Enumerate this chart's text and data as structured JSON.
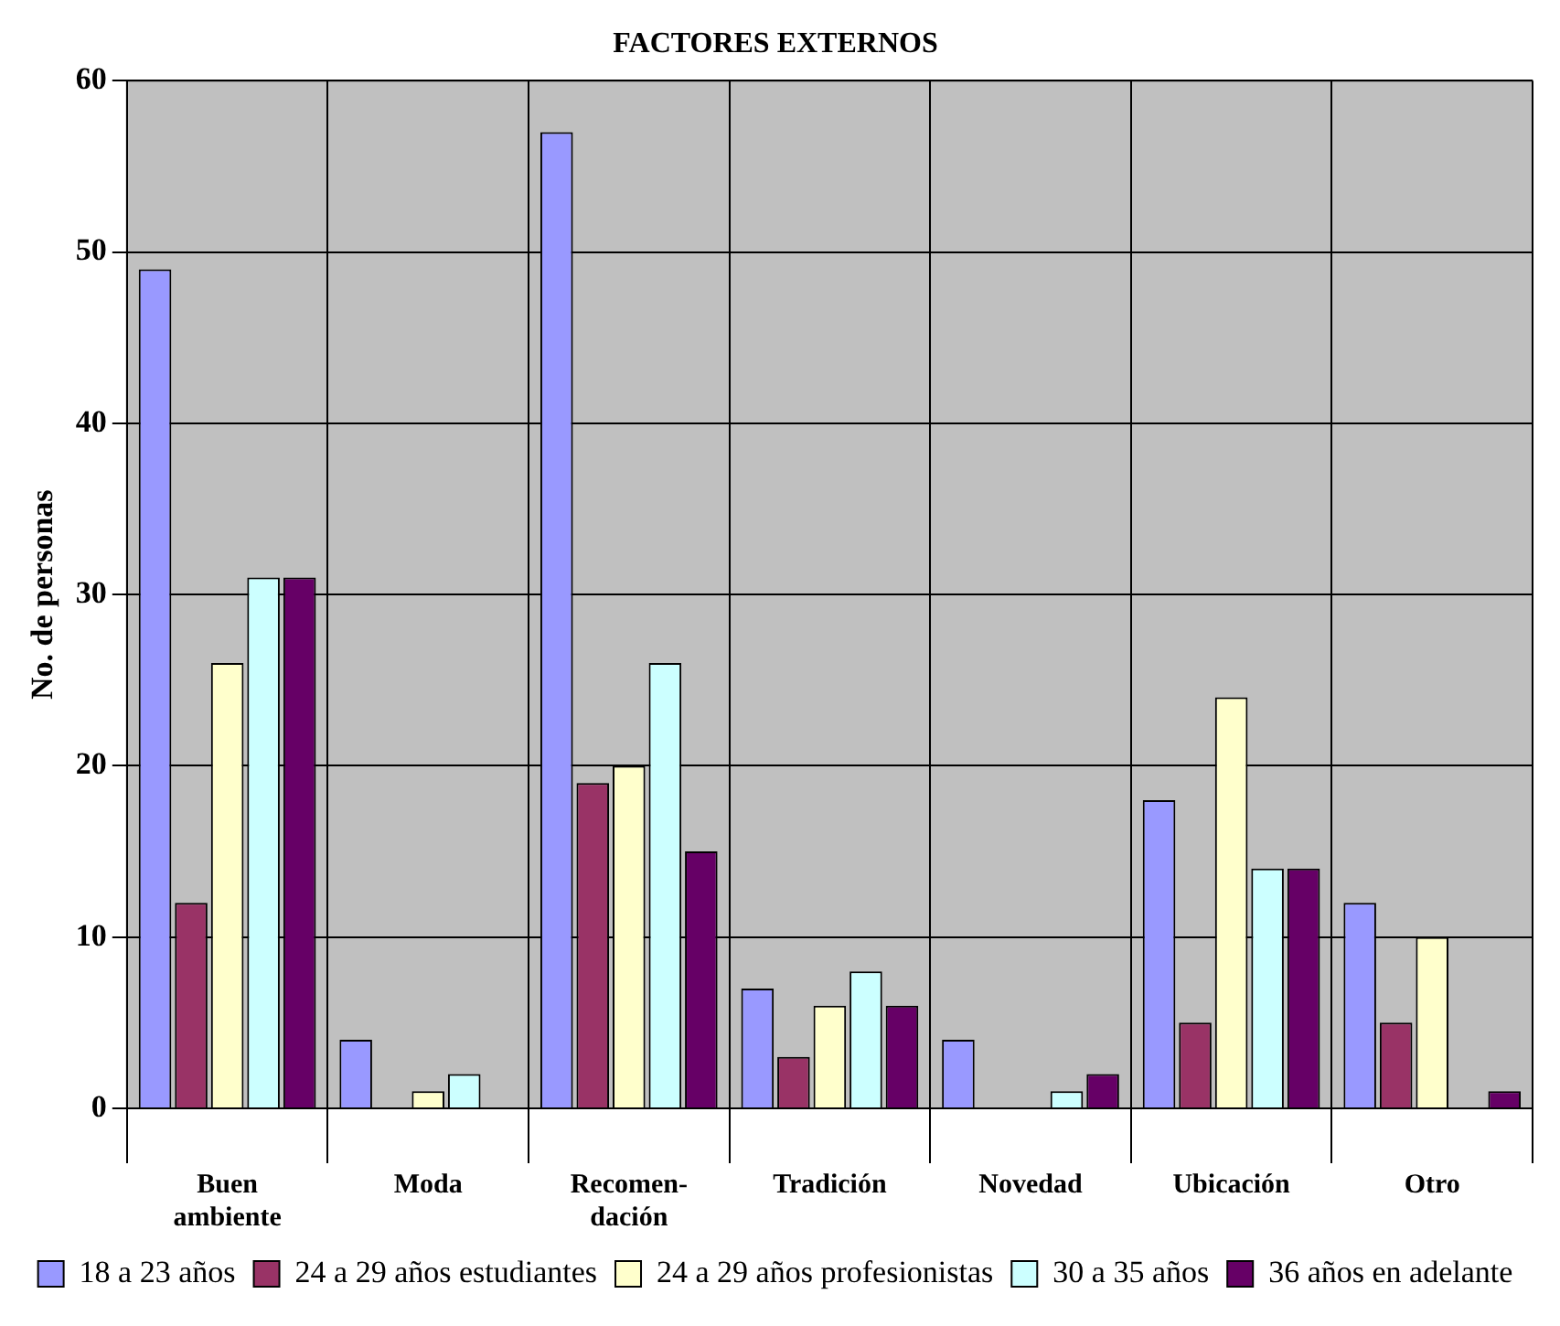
{
  "chart_data": {
    "type": "bar",
    "title": "FACTORES EXTERNOS",
    "ylabel": "No. de personas",
    "categories": [
      "Buen ambiente",
      "Moda",
      "Recomen- dación",
      "Tradición",
      "Novedad",
      "Ubicación",
      "Otro"
    ],
    "series": [
      {
        "name": "18 a 23 años",
        "color": "#9999ff",
        "values": [
          49,
          4,
          57,
          7,
          4,
          18,
          12
        ]
      },
      {
        "name": "24 a 29 años estudiantes",
        "color": "#993366",
        "values": [
          12,
          0,
          19,
          3,
          0,
          5,
          5
        ]
      },
      {
        "name": "24 a 29 años profesionistas",
        "color": "#ffffcc",
        "values": [
          26,
          1,
          20,
          6,
          0,
          24,
          10
        ]
      },
      {
        "name": "30 a 35 años",
        "color": "#ccffff",
        "values": [
          31,
          2,
          26,
          8,
          1,
          14,
          0
        ]
      },
      {
        "name": "36 años en adelante",
        "color": "#660066",
        "values": [
          31,
          0,
          15,
          6,
          2,
          14,
          1
        ]
      }
    ],
    "ylim": [
      0,
      60
    ],
    "yticks": [
      0,
      10,
      20,
      30,
      40,
      50,
      60
    ],
    "grid": true,
    "legend": "bottom"
  }
}
